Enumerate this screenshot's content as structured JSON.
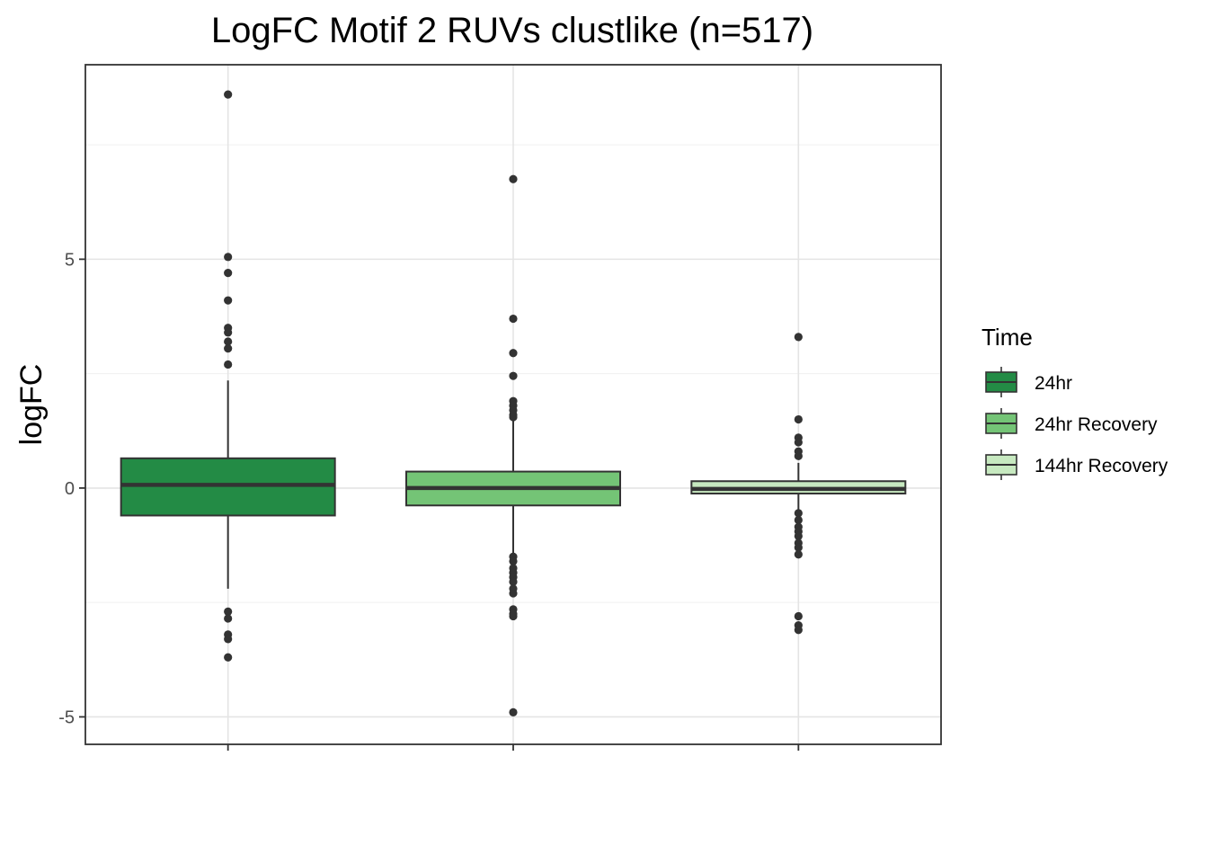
{
  "chart_data": {
    "type": "boxplot",
    "title": "LogFC Motif 2 RUVs clustlike (n=517)",
    "xlabel": "",
    "ylabel": "logFC",
    "ylim": [
      -5.6,
      9.25
    ],
    "yticks": [
      -5,
      0,
      5
    ],
    "ytick_labels": [
      "-5",
      "0",
      "5"
    ],
    "grid": true,
    "legend": {
      "title": "Time",
      "position": "right",
      "entries": [
        "24hr",
        "24hr Recovery",
        "144hr Recovery"
      ]
    },
    "series": [
      {
        "name": "24hr",
        "color": "#238b45",
        "q1": -0.6,
        "median": 0.07,
        "q3": 0.65,
        "whisker_low": -2.2,
        "whisker_high": 2.35,
        "outliers": [
          8.6,
          5.05,
          4.7,
          4.1,
          3.5,
          3.4,
          3.2,
          3.05,
          2.7,
          -2.7,
          -2.85,
          -3.2,
          -3.3,
          -3.7
        ]
      },
      {
        "name": "24hr Recovery",
        "color": "#74c476",
        "q1": -0.38,
        "median": 0.0,
        "q3": 0.36,
        "whisker_low": -1.45,
        "whisker_high": 1.55,
        "outliers": [
          6.75,
          3.7,
          2.95,
          2.45,
          1.9,
          1.8,
          1.7,
          1.6,
          1.55,
          -1.5,
          -1.6,
          -1.75,
          -1.85,
          -1.95,
          -2.05,
          -2.2,
          -2.3,
          -2.65,
          -2.75,
          -2.8,
          -4.9
        ]
      },
      {
        "name": "144hr Recovery",
        "color": "#c7e9c0",
        "q1": -0.12,
        "median": -0.02,
        "q3": 0.15,
        "whisker_low": -0.55,
        "whisker_high": 0.55,
        "outliers": [
          3.3,
          1.5,
          1.1,
          1.0,
          0.8,
          0.7,
          -0.55,
          -0.7,
          -0.85,
          -0.95,
          -1.05,
          -1.2,
          -1.3,
          -1.45,
          -2.8,
          -3.0,
          -3.1
        ]
      }
    ]
  }
}
